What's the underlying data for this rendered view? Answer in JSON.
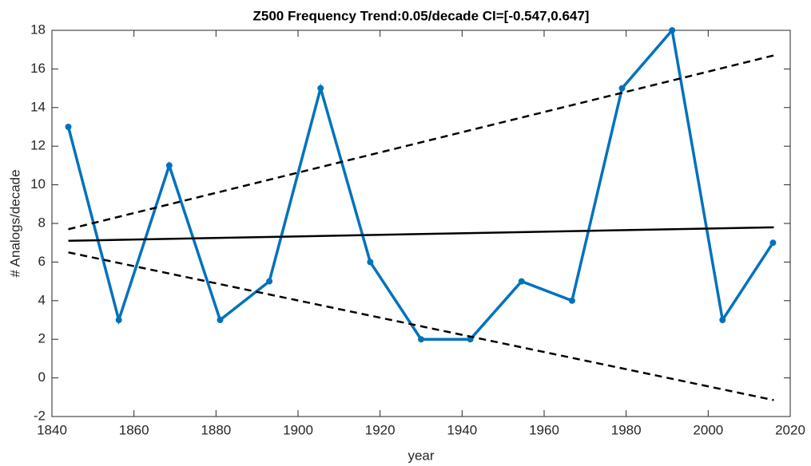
{
  "chart_data": {
    "type": "line",
    "title": "Z500 Frequency Trend:0.05/decade CI=[-0.547,0.647]",
    "xlabel": "year",
    "ylabel": "# Analogs/decade",
    "xlim": [
      1840,
      2020
    ],
    "xticks": [
      1840,
      1860,
      1880,
      1900,
      1920,
      1940,
      1960,
      1980,
      2000,
      2020
    ],
    "ylim": [
      -2,
      18
    ],
    "yticks": [
      -2,
      0,
      2,
      4,
      6,
      8,
      10,
      12,
      14,
      16,
      18
    ],
    "series": [
      {
        "color": "#0072bd",
        "marker": true,
        "x": [
          1844,
          1856.3,
          1868.6,
          1881,
          1893,
          1905.5,
          1917.6,
          1930,
          1942,
          1954.5,
          1966.8,
          1979,
          1991.2,
          2003.5,
          2015.8
        ],
        "values": [
          13,
          3,
          11,
          3,
          5,
          15,
          6,
          2,
          2,
          5,
          4,
          15,
          18,
          3,
          7
        ]
      },
      {
        "color": "#000000",
        "x": [
          1844,
          2016
        ],
        "values": [
          7.1,
          7.8
        ]
      },
      {
        "color": "#000000",
        "dashed": true,
        "x": [
          1844,
          2016
        ],
        "values": [
          7.7,
          16.7
        ]
      },
      {
        "color": "#000000",
        "dashed": true,
        "x": [
          1844,
          2016
        ],
        "values": [
          6.5,
          -1.15
        ]
      }
    ]
  }
}
